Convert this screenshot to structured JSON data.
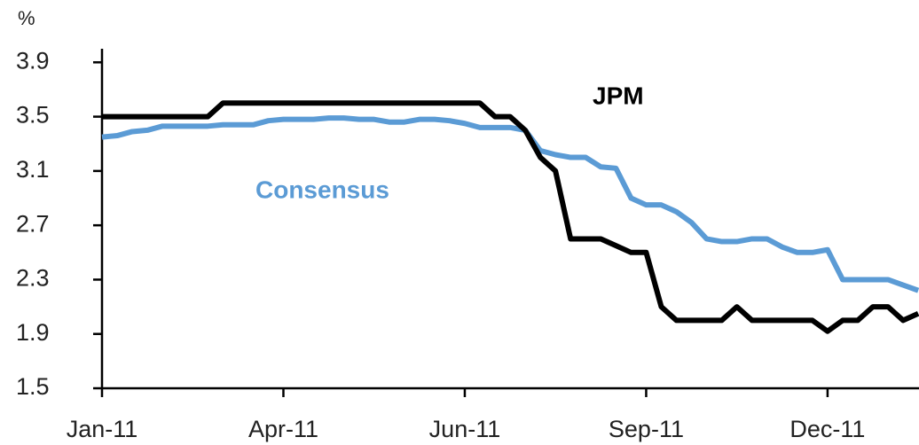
{
  "chart_data": {
    "type": "line",
    "y_label": "%",
    "categories": [
      "Jan-11",
      null,
      null,
      null,
      null,
      null,
      null,
      null,
      null,
      null,
      null,
      null,
      "Apr-11",
      null,
      null,
      null,
      null,
      null,
      null,
      null,
      null,
      null,
      null,
      null,
      "Jun-11",
      null,
      null,
      null,
      null,
      null,
      null,
      null,
      null,
      null,
      null,
      null,
      "Sep-11",
      null,
      null,
      null,
      null,
      null,
      null,
      null,
      null,
      null,
      null,
      null,
      "Dec-11",
      null,
      null,
      null,
      null,
      null,
      null
    ],
    "series": [
      {
        "name": "JPM",
        "color": "#000000",
        "values": [
          3.5,
          3.5,
          3.5,
          3.5,
          3.5,
          3.5,
          3.5,
          3.5,
          3.6,
          3.6,
          3.6,
          3.6,
          3.6,
          3.6,
          3.6,
          3.6,
          3.6,
          3.6,
          3.6,
          3.6,
          3.6,
          3.6,
          3.6,
          3.6,
          3.6,
          3.6,
          3.5,
          3.5,
          3.4,
          3.2,
          3.1,
          2.6,
          2.6,
          2.6,
          2.55,
          2.5,
          2.5,
          2.1,
          2.0,
          2.0,
          2.0,
          2.0,
          2.1,
          2.0,
          2.0,
          2.0,
          2.0,
          2.0,
          1.92,
          2.0,
          2.0,
          2.1,
          2.1,
          2.0,
          2.05
        ]
      },
      {
        "name": "Consensus",
        "color": "#5b9bd5",
        "values": [
          3.35,
          3.36,
          3.39,
          3.4,
          3.43,
          3.43,
          3.43,
          3.43,
          3.44,
          3.44,
          3.44,
          3.47,
          3.48,
          3.48,
          3.48,
          3.49,
          3.49,
          3.48,
          3.48,
          3.46,
          3.46,
          3.48,
          3.48,
          3.47,
          3.45,
          3.42,
          3.42,
          3.42,
          3.4,
          3.25,
          3.22,
          3.2,
          3.2,
          3.13,
          3.12,
          2.9,
          2.85,
          2.85,
          2.8,
          2.72,
          2.6,
          2.58,
          2.58,
          2.6,
          2.6,
          2.54,
          2.5,
          2.5,
          2.52,
          2.3,
          2.3,
          2.3,
          2.3,
          2.26,
          2.22
        ]
      }
    ],
    "ylim": [
      1.5,
      4.0
    ],
    "yticks": [
      1.5,
      1.9,
      2.3,
      2.7,
      3.1,
      3.5,
      3.9
    ]
  }
}
